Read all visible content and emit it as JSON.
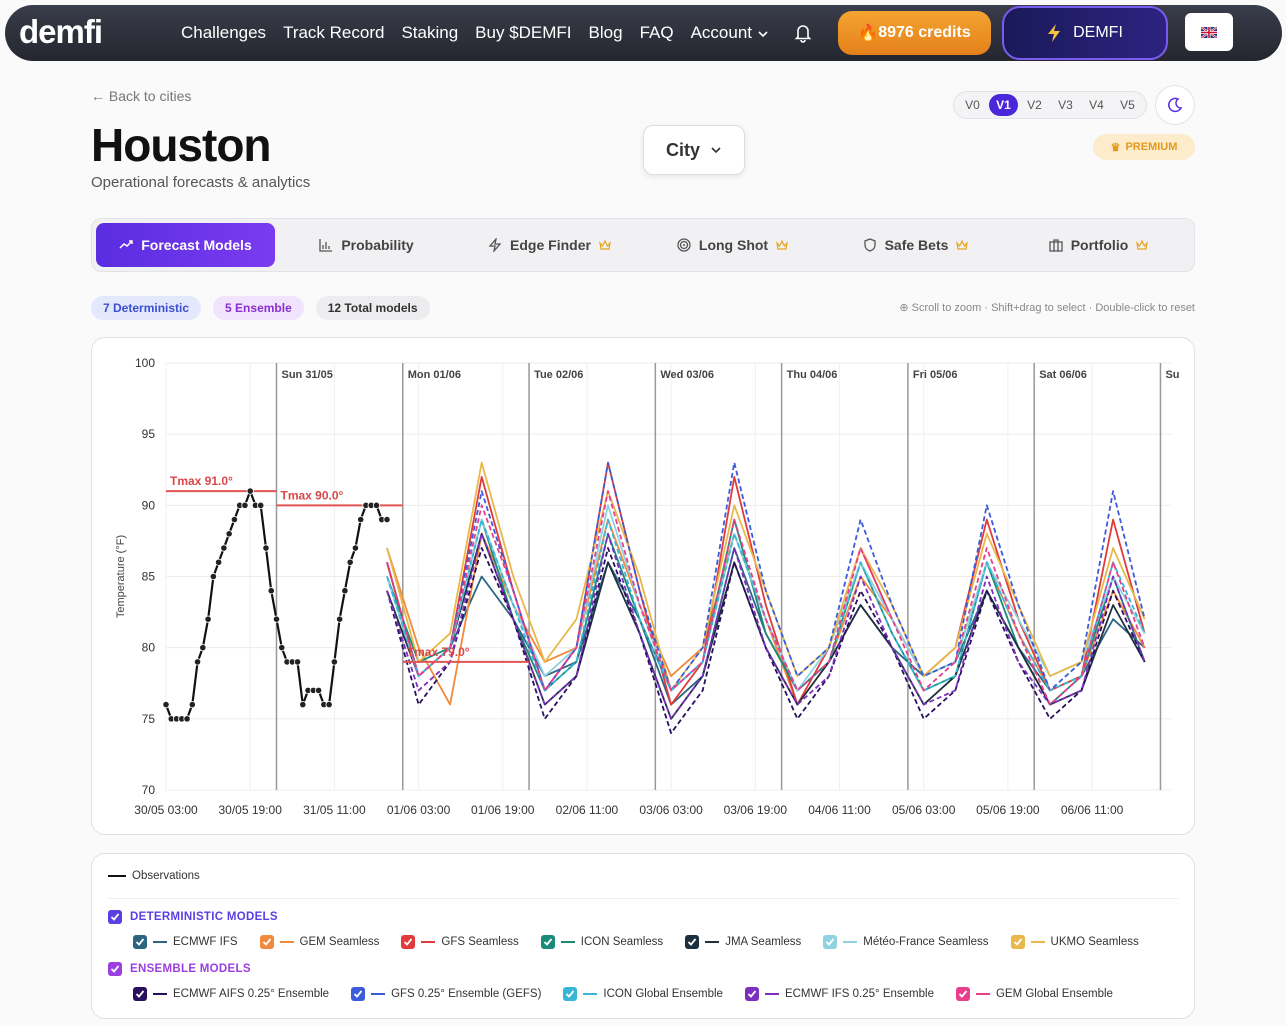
{
  "nav": {
    "logo": "demfi",
    "links": [
      "Challenges",
      "Track Record",
      "Staking",
      "Buy $DEMFI",
      "Blog",
      "FAQ",
      "Account"
    ],
    "credits": "8976 credits",
    "wallet": "DEMFI"
  },
  "header": {
    "back": "Back to cities",
    "title": "Houston",
    "subtitle": "Operational forecasts & analytics",
    "city_select": "City",
    "versions": [
      "V0",
      "V1",
      "V2",
      "V3",
      "V4",
      "V5"
    ],
    "active_version": "V1",
    "premium": "PREMIUM"
  },
  "tabs": [
    "Forecast Models",
    "Probability",
    "Edge Finder",
    "Long Shot",
    "Safe Bets",
    "Portfolio"
  ],
  "badges": [
    "7 Deterministic",
    "5 Ensemble",
    "12 Total models"
  ],
  "hint": "Scroll to zoom · Shift+drag to select · Double-click to reset",
  "chart_data": {
    "type": "line",
    "y_label": "Temperature (°F)",
    "xlim": [
      "30/05 03:00",
      "07/06 02:00"
    ],
    "xticks": [
      "30/05 03:00",
      "30/05 19:00",
      "31/05 11:00",
      "01/06 03:00",
      "01/06 19:00",
      "02/06 11:00",
      "03/06 03:00",
      "03/06 19:00",
      "04/06 11:00",
      "05/06 03:00",
      "05/06 19:00",
      "06/06 11:00"
    ],
    "ylim": [
      70,
      100
    ],
    "yticks": [
      70,
      75,
      80,
      85,
      90,
      95,
      100
    ],
    "grid": true,
    "day_markers": [
      {
        "label": "Sun 31/05",
        "at": "31/05 00:00"
      },
      {
        "label": "Mon 01/06",
        "at": "01/06 00:00"
      },
      {
        "label": "Tue 02/06",
        "at": "02/06 00:00"
      },
      {
        "label": "Wed 03/06",
        "at": "03/06 00:00"
      },
      {
        "label": "Thu 04/06",
        "at": "04/06 00:00"
      },
      {
        "label": "Fri 05/06",
        "at": "05/06 00:00"
      },
      {
        "label": "Sat 06/06",
        "at": "06/06 00:00"
      },
      {
        "label": "Su",
        "at": "07/06 00:00"
      }
    ],
    "annotations": [
      {
        "label": "Tmax 91.0°",
        "value": 91,
        "from": "30/05 03:00",
        "to": "31/05 00:00"
      },
      {
        "label": "Tmax 90.0°",
        "value": 90,
        "from": "31/05 00:00",
        "to": "01/06 00:00"
      },
      {
        "label": "Tmax 79.0°",
        "value": 79,
        "from": "01/06 00:00",
        "to": "02/06 00:00"
      }
    ],
    "observations": {
      "name": "Observations",
      "color": "#111111",
      "x": [
        "30/05 03:00",
        "30/05 04:00",
        "30/05 05:00",
        "30/05 06:00",
        "30/05 07:00",
        "30/05 08:00",
        "30/05 09:00",
        "30/05 10:00",
        "30/05 11:00",
        "30/05 12:00",
        "30/05 13:00",
        "30/05 14:00",
        "30/05 15:00",
        "30/05 16:00",
        "30/05 17:00",
        "30/05 18:00",
        "30/05 19:00",
        "30/05 20:00",
        "30/05 21:00",
        "30/05 22:00",
        "30/05 23:00",
        "31/05 00:00",
        "31/05 01:00",
        "31/05 02:00",
        "31/05 03:00",
        "31/05 04:00",
        "31/05 05:00",
        "31/05 06:00",
        "31/05 07:00",
        "31/05 08:00",
        "31/05 09:00",
        "31/05 10:00",
        "31/05 11:00",
        "31/05 12:00",
        "31/05 13:00",
        "31/05 14:00",
        "31/05 15:00",
        "31/05 16:00",
        "31/05 17:00",
        "31/05 18:00",
        "31/05 19:00",
        "31/05 20:00",
        "31/05 21:00"
      ],
      "values": [
        76,
        75,
        75,
        75,
        75,
        76,
        79,
        80,
        82,
        85,
        86,
        87,
        88,
        89,
        90,
        90,
        91,
        90,
        90,
        87,
        84,
        82,
        80,
        79,
        79,
        79,
        76,
        77,
        77,
        77,
        76,
        76,
        79,
        82,
        84,
        86,
        87,
        89,
        90,
        90,
        90,
        89,
        89
      ]
    },
    "x": [
      "31/05 21:00",
      "01/06 03:00",
      "01/06 09:00",
      "01/06 15:00",
      "01/06 21:00",
      "02/06 03:00",
      "02/06 09:00",
      "02/06 15:00",
      "02/06 21:00",
      "03/06 03:00",
      "03/06 09:00",
      "03/06 15:00",
      "03/06 21:00",
      "04/06 03:00",
      "04/06 09:00",
      "04/06 15:00",
      "04/06 21:00",
      "05/06 03:00",
      "05/06 09:00",
      "05/06 15:00",
      "05/06 21:00",
      "06/06 03:00",
      "06/06 09:00",
      "06/06 15:00",
      "06/06 21:00"
    ],
    "series_groups": [
      {
        "title": "DETERMINISTIC MODELS",
        "color": "#5b3fe0",
        "series": [
          {
            "name": "ECMWF IFS",
            "color": "#2c6482",
            "values": [
              86,
              78,
              80,
              85,
              82,
              78,
              79,
              86,
              82,
              76,
              78,
              87,
              81,
              77,
              79,
              83,
              80,
              78,
              79,
              84,
              80,
              77,
              78,
              82,
              80
            ]
          },
          {
            "name": "GEM Seamless",
            "color": "#f08a3c",
            "values": [
              87,
              80,
              76,
              88,
              83,
              79,
              80,
              89,
              83,
              78,
              80,
              88,
              82,
              76,
              79,
              85,
              82,
              78,
              79,
              86,
              81,
              77,
              78,
              84,
              80
            ]
          },
          {
            "name": "GFS Seamless",
            "color": "#e03a3a",
            "values": [
              86,
              78,
              80,
              92,
              84,
              77,
              80,
              93,
              84,
              76,
              79,
              92,
              83,
              76,
              80,
              87,
              82,
              78,
              80,
              89,
              82,
              77,
              78,
              89,
              81
            ]
          },
          {
            "name": "ICON Seamless",
            "color": "#1a8a7a",
            "values": [
              85,
              79,
              80,
              89,
              82,
              77,
              79,
              88,
              82,
              77,
              79,
              89,
              81,
              77,
              79,
              86,
              81,
              77,
              78,
              86,
              80,
              76,
              78,
              85,
              79
            ]
          },
          {
            "name": "JMA Seamless",
            "color": "#1e3040",
            "values": [
              84,
              78,
              80,
              88,
              82,
              76,
              78,
              86,
              81,
              75,
              78,
              86,
              80,
              76,
              79,
              83,
              80,
              76,
              78,
              84,
              80,
              76,
              77,
              83,
              79
            ]
          },
          {
            "name": "Météo-France Seamless",
            "color": "#8fd3e0",
            "values": [
              85,
              78,
              80,
              89,
              83,
              78,
              80,
              90,
              83,
              77,
              79,
              88,
              82,
              77,
              80,
              86,
              82,
              78,
              79,
              86,
              82,
              78,
              79,
              85,
              81
            ]
          },
          {
            "name": "UKMO Seamless",
            "color": "#e8b84a",
            "values": [
              87,
              79,
              81,
              93,
              85,
              79,
              82,
              91,
              85,
              77,
              80,
              90,
              84,
              78,
              80,
              87,
              83,
              78,
              80,
              88,
              83,
              78,
              79,
              87,
              82
            ]
          }
        ]
      },
      {
        "title": "ENSEMBLE MODELS",
        "color": "#9b3fe0",
        "series": [
          {
            "name": "ECMWF AIFS 0.25° Ensemble",
            "color": "#2a0f5e",
            "values": [
              84,
              76,
              79,
              87,
              82,
              75,
              78,
              87,
              81,
              74,
              77,
              86,
              80,
              75,
              78,
              84,
              80,
              75,
              77,
              84,
              79,
              75,
              77,
              84,
              79
            ]
          },
          {
            "name": "GFS 0.25° Ensemble (GEFS)",
            "color": "#3b5bdb",
            "values": [
              86,
              78,
              80,
              91,
              84,
              77,
              80,
              93,
              84,
              77,
              80,
              93,
              84,
              78,
              80,
              89,
              83,
              78,
              79,
              90,
              83,
              77,
              79,
              91,
              82
            ]
          },
          {
            "name": "ICON Global Ensemble",
            "color": "#38b6d6",
            "values": [
              85,
              78,
              80,
              89,
              83,
              77,
              79,
              89,
              82,
              77,
              79,
              88,
              82,
              77,
              79,
              86,
              81,
              77,
              78,
              86,
              81,
              77,
              78,
              86,
              81
            ]
          },
          {
            "name": "ECMWF IFS 0.25° Ensemble",
            "color": "#7b2fbe",
            "values": [
              84,
              77,
              79,
              88,
              82,
              76,
              78,
              88,
              81,
              75,
              78,
              87,
              80,
              76,
              78,
              85,
              80,
              76,
              77,
              85,
              79,
              76,
              77,
              85,
              79
            ]
          },
          {
            "name": "GEM Global Ensemble",
            "color": "#e83e8c",
            "values": [
              86,
              78,
              80,
              90,
              84,
              77,
              80,
              91,
              83,
              77,
              79,
              89,
              82,
              77,
              79,
              87,
              82,
              77,
              79,
              87,
              81,
              76,
              78,
              86,
              80
            ]
          }
        ]
      }
    ]
  }
}
